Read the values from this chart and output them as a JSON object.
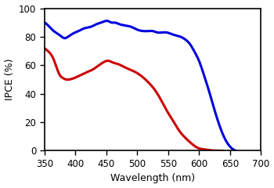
{
  "title": "",
  "xlabel": "Wavelength (nm)",
  "ylabel": "IPCE (%)",
  "xlim": [
    350,
    700
  ],
  "ylim": [
    0,
    100
  ],
  "xticks": [
    350,
    400,
    450,
    500,
    550,
    600,
    650,
    700
  ],
  "yticks": [
    0,
    20,
    40,
    60,
    80,
    100
  ],
  "blue_color": "#0000dd",
  "red_color": "#cc0000",
  "line_width": 2.2,
  "blue_x": [
    350,
    358,
    365,
    372,
    378,
    383,
    388,
    395,
    405,
    415,
    425,
    435,
    442,
    448,
    453,
    458,
    463,
    470,
    480,
    490,
    500,
    510,
    518,
    525,
    533,
    540,
    548,
    555,
    562,
    570,
    578,
    585,
    592,
    600,
    608,
    616,
    624,
    632,
    640,
    648,
    655,
    660
  ],
  "blue_y": [
    90,
    87,
    84,
    82,
    80,
    79,
    80,
    82,
    84,
    86,
    87,
    89,
    90,
    91,
    91,
    90,
    90,
    89,
    88,
    87,
    85,
    84,
    84,
    84,
    83,
    83,
    83,
    82,
    81,
    80,
    78,
    75,
    70,
    63,
    53,
    42,
    30,
    19,
    10,
    4,
    1,
    0
  ],
  "red_x": [
    350,
    358,
    365,
    370,
    375,
    380,
    385,
    390,
    398,
    408,
    418,
    428,
    438,
    445,
    450,
    455,
    460,
    468,
    478,
    488,
    498,
    508,
    518,
    528,
    538,
    548,
    558,
    568,
    578,
    588,
    598,
    608,
    616,
    622,
    628,
    633,
    638
  ],
  "red_y": [
    72,
    69,
    64,
    58,
    53,
    51,
    50,
    50,
    51,
    53,
    55,
    57,
    60,
    62,
    63,
    63,
    62,
    61,
    59,
    57,
    55,
    52,
    48,
    43,
    36,
    28,
    21,
    14,
    9,
    5,
    2,
    1,
    0.5,
    0.2,
    0.1,
    0.05,
    0
  ],
  "figsize": [
    3.5,
    2.4
  ],
  "dpi": 100
}
